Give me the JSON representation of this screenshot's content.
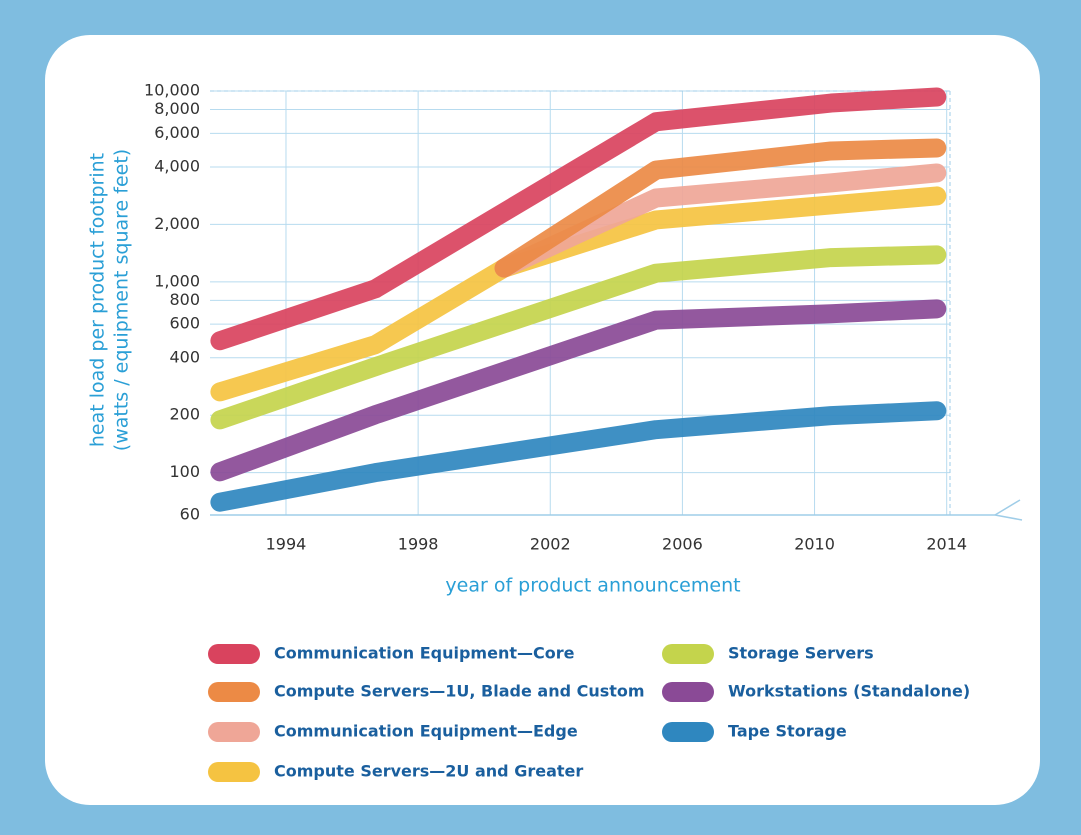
{
  "chart_data": {
    "type": "line",
    "ylabel": [
      "heat load per product footprint",
      "(watts / equipment square feet)"
    ],
    "xlabel": "year of product announcement",
    "yscale": "log",
    "grid": true,
    "xlim": [
      1991.7,
      2014.1
    ],
    "xticks": [
      1994,
      1998,
      2002,
      2006,
      2010,
      2014
    ],
    "ylim": [
      60,
      10000
    ],
    "yticks": [
      60,
      100,
      200,
      400,
      600,
      800,
      {
        "value": 1000,
        "label": "1,000"
      },
      {
        "value": 2000,
        "label": "2,000"
      },
      {
        "value": 4000,
        "label": "4,000"
      },
      {
        "value": 6000,
        "label": "6,000"
      },
      {
        "value": 8000,
        "label": "8,000"
      },
      {
        "value": 10000,
        "label": "10,000"
      }
    ],
    "series": [
      {
        "name": "Communication Equipment—Core",
        "color": "#d9435e",
        "x": [
          1992,
          1996.7,
          2005.2,
          2010.5,
          2013.7
        ],
        "values": [
          491,
          918,
          6900,
          8650,
          9300
        ]
      },
      {
        "name": "Compute Servers—1U, Blade and Custom",
        "color": "#ec8a45",
        "x": [
          2000.6,
          2005.2,
          2010.5,
          2013.7
        ],
        "values": [
          1180,
          3850,
          4850,
          5030
        ]
      },
      {
        "name": "Communication Equipment—Edge",
        "color": "#efa697",
        "x": [
          2000.6,
          2005.2,
          2010.5,
          2013.7
        ],
        "values": [
          1180,
          2750,
          3300,
          3720
        ]
      },
      {
        "name": "Compute Servers—2U and Greater",
        "color": "#f5c341",
        "x": [
          1992,
          1996.7,
          2000.6,
          2005.2,
          2010.5,
          2013.7
        ],
        "values": [
          265,
          468,
          1180,
          2110,
          2530,
          2820
        ]
      },
      {
        "name": "Storage Servers",
        "color": "#c4d44c",
        "x": [
          1992,
          1996.7,
          2005.2,
          2010.5,
          2013.7
        ],
        "values": [
          189,
          359,
          1110,
          1340,
          1385
        ]
      },
      {
        "name": "Workstations (Standalone)",
        "color": "#8a4a96",
        "x": [
          1992,
          1996.7,
          2005.2,
          2010.5,
          2013.7
        ],
        "values": [
          101,
          201,
          630,
          680,
          722
        ]
      },
      {
        "name": "Tape Storage",
        "color": "#2f87bf",
        "x": [
          1992,
          1996.7,
          2005.2,
          2010.5,
          2013.7
        ],
        "values": [
          70,
          100,
          168,
          199,
          211
        ]
      }
    ]
  }
}
